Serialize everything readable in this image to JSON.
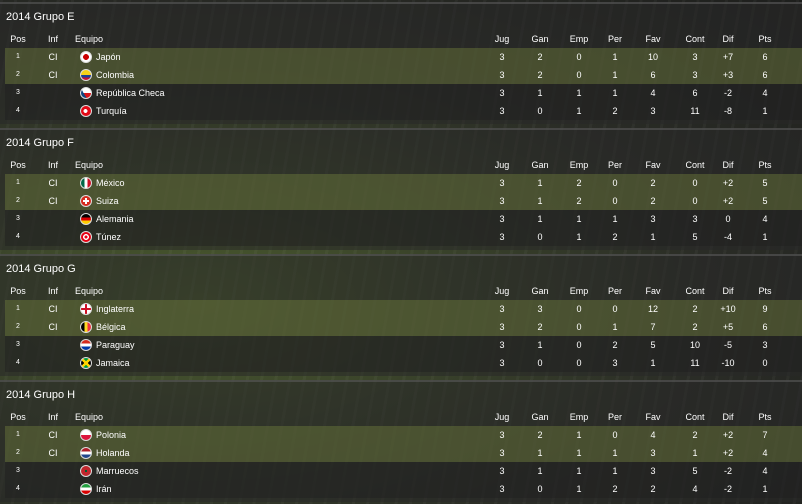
{
  "columns": {
    "pos": "Pos",
    "inf": "Inf",
    "equipo": "Equipo",
    "jug": "Jug",
    "gan": "Gan",
    "emp": "Emp",
    "per": "Per",
    "fav": "Fav",
    "cont": "Cont",
    "dif": "Dif",
    "pts": "Pts"
  },
  "groups": [
    {
      "title": "2014 Grupo E",
      "rows": [
        {
          "pos": "1",
          "inf": "CI",
          "team": "Japón",
          "flag": "japan",
          "jug": "3",
          "gan": "2",
          "emp": "0",
          "per": "1",
          "fav": "10",
          "cont": "3",
          "dif": "+7",
          "pts": "6"
        },
        {
          "pos": "2",
          "inf": "CI",
          "team": "Colombia",
          "flag": "colombia",
          "jug": "3",
          "gan": "2",
          "emp": "0",
          "per": "1",
          "fav": "6",
          "cont": "3",
          "dif": "+3",
          "pts": "6"
        },
        {
          "pos": "3",
          "inf": "",
          "team": "República Checa",
          "flag": "czech",
          "jug": "3",
          "gan": "1",
          "emp": "1",
          "per": "1",
          "fav": "4",
          "cont": "6",
          "dif": "-2",
          "pts": "4"
        },
        {
          "pos": "4",
          "inf": "",
          "team": "Turquía",
          "flag": "turkey",
          "jug": "3",
          "gan": "0",
          "emp": "1",
          "per": "2",
          "fav": "3",
          "cont": "11",
          "dif": "-8",
          "pts": "1"
        }
      ]
    },
    {
      "title": "2014 Grupo F",
      "rows": [
        {
          "pos": "1",
          "inf": "CI",
          "team": "México",
          "flag": "mexico",
          "jug": "3",
          "gan": "1",
          "emp": "2",
          "per": "0",
          "fav": "2",
          "cont": "0",
          "dif": "+2",
          "pts": "5"
        },
        {
          "pos": "2",
          "inf": "CI",
          "team": "Suiza",
          "flag": "switzerland",
          "jug": "3",
          "gan": "1",
          "emp": "2",
          "per": "0",
          "fav": "2",
          "cont": "0",
          "dif": "+2",
          "pts": "5"
        },
        {
          "pos": "3",
          "inf": "",
          "team": "Alemania",
          "flag": "germany",
          "jug": "3",
          "gan": "1",
          "emp": "1",
          "per": "1",
          "fav": "3",
          "cont": "3",
          "dif": "0",
          "pts": "4"
        },
        {
          "pos": "4",
          "inf": "",
          "team": "Túnez",
          "flag": "tunisia",
          "jug": "3",
          "gan": "0",
          "emp": "1",
          "per": "2",
          "fav": "1",
          "cont": "5",
          "dif": "-4",
          "pts": "1"
        }
      ]
    },
    {
      "title": "2014 Grupo G",
      "rows": [
        {
          "pos": "1",
          "inf": "CI",
          "team": "Inglaterra",
          "flag": "england",
          "jug": "3",
          "gan": "3",
          "emp": "0",
          "per": "0",
          "fav": "12",
          "cont": "2",
          "dif": "+10",
          "pts": "9"
        },
        {
          "pos": "2",
          "inf": "CI",
          "team": "Bélgica",
          "flag": "belgium",
          "jug": "3",
          "gan": "2",
          "emp": "0",
          "per": "1",
          "fav": "7",
          "cont": "2",
          "dif": "+5",
          "pts": "6"
        },
        {
          "pos": "3",
          "inf": "",
          "team": "Paraguay",
          "flag": "paraguay",
          "jug": "3",
          "gan": "1",
          "emp": "0",
          "per": "2",
          "fav": "5",
          "cont": "10",
          "dif": "-5",
          "pts": "3"
        },
        {
          "pos": "4",
          "inf": "",
          "team": "Jamaica",
          "flag": "jamaica",
          "jug": "3",
          "gan": "0",
          "emp": "0",
          "per": "3",
          "fav": "1",
          "cont": "11",
          "dif": "-10",
          "pts": "0"
        }
      ]
    },
    {
      "title": "2014 Grupo H",
      "rows": [
        {
          "pos": "1",
          "inf": "CI",
          "team": "Polonia",
          "flag": "poland",
          "jug": "3",
          "gan": "2",
          "emp": "1",
          "per": "0",
          "fav": "4",
          "cont": "2",
          "dif": "+2",
          "pts": "7"
        },
        {
          "pos": "2",
          "inf": "CI",
          "team": "Holanda",
          "flag": "netherlands",
          "jug": "3",
          "gan": "1",
          "emp": "1",
          "per": "1",
          "fav": "3",
          "cont": "1",
          "dif": "+2",
          "pts": "4"
        },
        {
          "pos": "3",
          "inf": "",
          "team": "Marruecos",
          "flag": "morocco",
          "jug": "3",
          "gan": "1",
          "emp": "1",
          "per": "1",
          "fav": "3",
          "cont": "5",
          "dif": "-2",
          "pts": "4"
        },
        {
          "pos": "4",
          "inf": "",
          "team": "Irán",
          "flag": "iran",
          "jug": "3",
          "gan": "0",
          "emp": "1",
          "per": "2",
          "fav": "2",
          "cont": "4",
          "dif": "-2",
          "pts": "1"
        }
      ]
    }
  ],
  "flag_styles": {
    "japan": "radial-gradient(circle,#c00 40%,#fff 42%)",
    "colombia": "linear-gradient(#f7d117 50%,#1c3f94 50% 75%,#c8102e 75%)",
    "czech": "linear-gradient(60deg,#11457e 35%,transparent 35%),linear-gradient(#fff 50%,#d7141a 50%)",
    "turkey": "radial-gradient(circle at 45% 50%,#fff 25%,#e30a17 27%)",
    "mexico": "linear-gradient(90deg,#006847 33%,#fff 33% 66%,#ce1126 66%)",
    "switzerland": "linear-gradient(#fff,#fff) center/60% 20% no-repeat,linear-gradient(#fff,#fff) center/20% 60% no-repeat,#d52b1e",
    "germany": "linear-gradient(#000 33%,#dd0000 33% 66%,#ffce00 66%)",
    "tunisia": "radial-gradient(circle,#e70013 20%,#fff 22% 40%,#e70013 42%)",
    "england": "linear-gradient(#ce1124,#ce1124) center/100% 22% no-repeat,linear-gradient(#ce1124,#ce1124) center/22% 100% no-repeat,#fff",
    "belgium": "linear-gradient(90deg,#000 33%,#fdda24 33% 66%,#ef3340 66%)",
    "paraguay": "linear-gradient(#d52b1e 33%,#fff 33% 66%,#0038a8 66%)",
    "jamaica": "linear-gradient(45deg,transparent 42%,#fed100 42% 58%,transparent 58%),linear-gradient(-45deg,transparent 42%,#fed100 42% 58%,transparent 58%),linear-gradient(90deg,#000 30%,#009b3a 30% 70%,#000 70%)",
    "poland": "linear-gradient(#fff 50%,#dc143c 50%)",
    "netherlands": "linear-gradient(#ae1c28 33%,#fff 33% 66%,#21468b 66%)",
    "morocco": "radial-gradient(circle,#006233 15%,#c1272d 18%)",
    "iran": "linear-gradient(#239f40 33%,#fff 33% 66%,#da0000 66%)"
  }
}
